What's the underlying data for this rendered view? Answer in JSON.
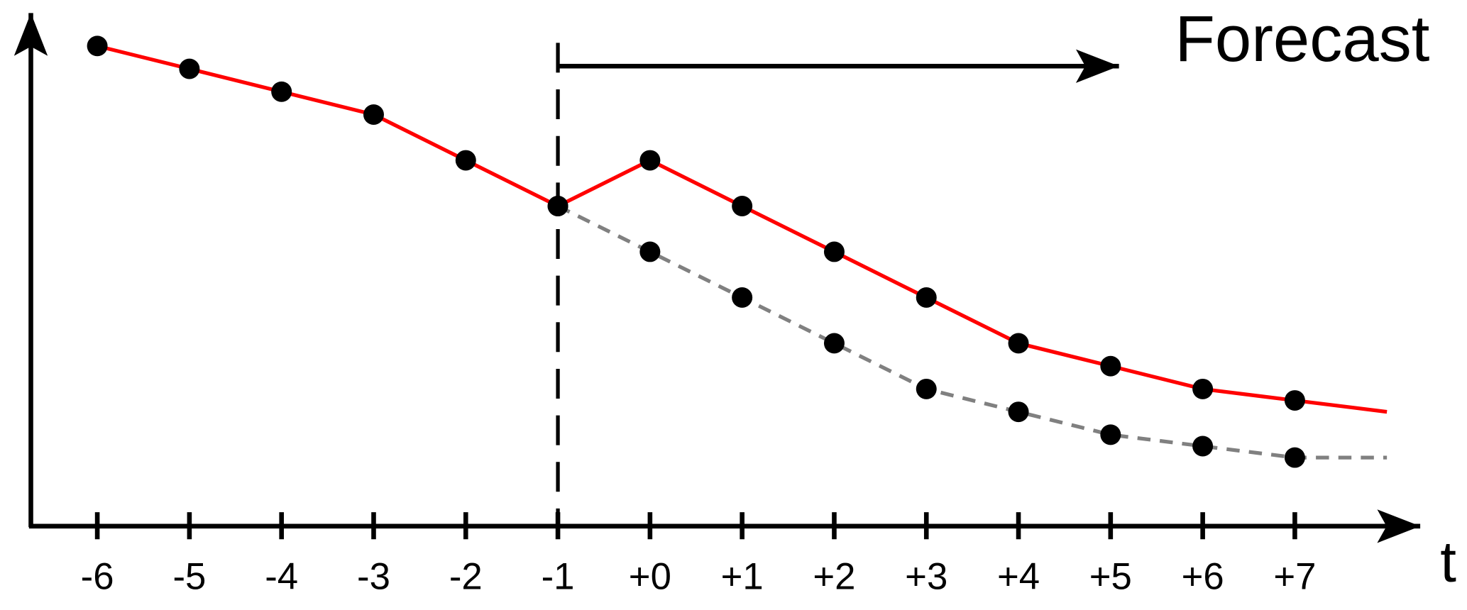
{
  "chart_data": {
    "type": "line",
    "annotation": "Forecast",
    "x_label": "t",
    "categories": [
      "-6",
      "-5",
      "-4",
      "-3",
      "-2",
      "-1",
      "+0",
      "+1",
      "+2",
      "+3",
      "+4",
      "+5",
      "+6",
      "+7",
      null
    ],
    "series": [
      {
        "color": "#ff0000",
        "dash": false,
        "values": [
          10.5,
          10,
          9.5,
          9,
          8,
          7,
          8,
          7,
          6,
          5,
          4,
          3.5,
          3,
          2.75,
          2.5
        ]
      },
      {
        "color": "#808080",
        "dash": true,
        "values": [
          null,
          null,
          null,
          null,
          null,
          7,
          6,
          5,
          4,
          3,
          2.5,
          2,
          1.75,
          1.5,
          1.5
        ]
      }
    ],
    "ylim": [
      0,
      11.2
    ]
  }
}
